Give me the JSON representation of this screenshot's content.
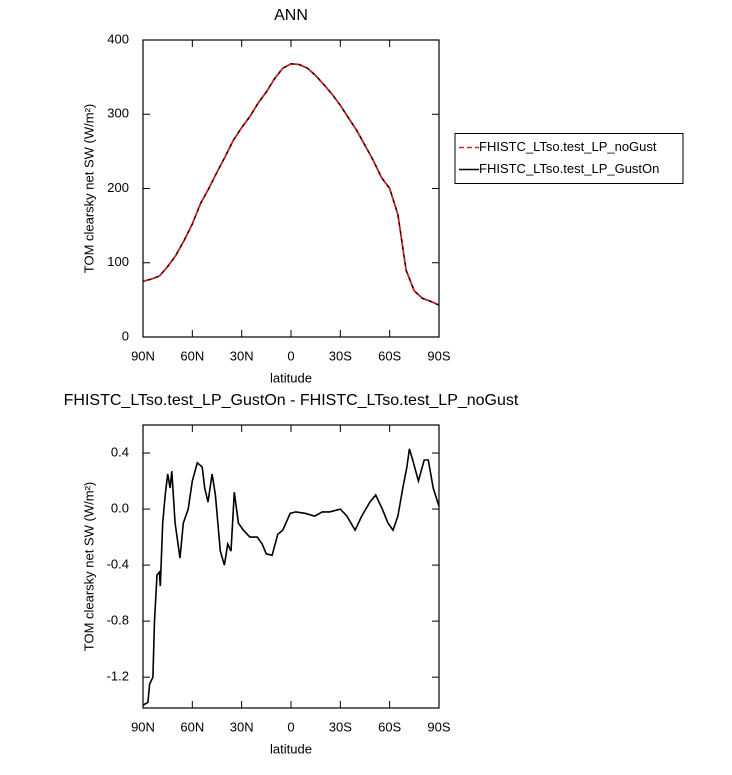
{
  "chart_data": [
    {
      "type": "line",
      "title": "ANN",
      "xlabel": "latitude",
      "ylabel": "TOM clearsky net SW (W/m²)",
      "x": [
        90,
        85,
        80,
        75,
        70,
        65,
        60,
        55,
        50,
        45,
        40,
        35,
        30,
        25,
        20,
        15,
        10,
        5,
        0,
        -5,
        -10,
        -15,
        -20,
        -25,
        -30,
        -35,
        -40,
        -45,
        -50,
        -55,
        -60,
        -65,
        -70,
        -75,
        -80,
        -85,
        -90
      ],
      "series": [
        {
          "name": "FHISTC_LTso.test_LP_noGust",
          "color": "#e41a1c",
          "linestyle": "dashed",
          "values": [
            75,
            78,
            82,
            95,
            110,
            130,
            152,
            180,
            200,
            222,
            243,
            265,
            282,
            297,
            315,
            330,
            348,
            362,
            368,
            367,
            362,
            352,
            340,
            327,
            312,
            295,
            278,
            258,
            238,
            215,
            200,
            165,
            90,
            62,
            52,
            48,
            43
          ]
        },
        {
          "name": "FHISTC_LTso.test_LP_GustOn",
          "color": "#000000",
          "linestyle": "solid",
          "values": [
            75,
            78,
            82,
            95,
            110,
            130,
            152,
            180,
            200,
            222,
            243,
            265,
            282,
            297,
            315,
            330,
            348,
            362,
            368,
            367,
            362,
            352,
            340,
            327,
            312,
            295,
            278,
            258,
            238,
            215,
            200,
            165,
            90,
            62,
            52,
            48,
            43
          ]
        }
      ],
      "xlim": [
        90,
        -90
      ],
      "xticks": [
        {
          "value": 90,
          "label": "90N"
        },
        {
          "value": 60,
          "label": "60N"
        },
        {
          "value": 30,
          "label": "30N"
        },
        0,
        {
          "value": -30,
          "label": "30S"
        },
        {
          "value": -60,
          "label": "60S"
        },
        {
          "value": -90,
          "label": "90S"
        }
      ],
      "ylim": [
        0,
        400
      ],
      "yticks": [
        0,
        100,
        200,
        300,
        400
      ],
      "legend": "right"
    },
    {
      "type": "line",
      "title": "FHISTC_LTso.test_LP_GustOn - FHISTC_LTso.test_LP_noGust",
      "xlabel": "latitude",
      "ylabel": "TOM clearsky net SW (W/m²)",
      "x": [
        90,
        87,
        86,
        84,
        83,
        81.5,
        80,
        79.5,
        78,
        76.5,
        75,
        73.5,
        72.5,
        70.5,
        67.5,
        65.5,
        62.5,
        60,
        57,
        54,
        52.5,
        50.5,
        48,
        46,
        43,
        40.5,
        38.5,
        36.5,
        34.5,
        32,
        29,
        25,
        20.5,
        17.5,
        15,
        11.5,
        8,
        5,
        0.5,
        -3,
        -8.5,
        -14.5,
        -19,
        -23.5,
        -30,
        -34,
        -39,
        -43,
        -48,
        -51.5,
        -55.5,
        -59,
        -62,
        -65,
        -68,
        -70.5,
        -72,
        -74,
        -77.5,
        -81,
        -83.5,
        -86.5,
        -90
      ],
      "values": [
        -1.4,
        -1.38,
        -1.25,
        -1.2,
        -0.8,
        -0.47,
        -0.45,
        -0.55,
        -0.1,
        0.1,
        0.25,
        0.15,
        0.27,
        -0.1,
        -0.35,
        -0.1,
        0.0,
        0.2,
        0.33,
        0.3,
        0.15,
        0.05,
        0.25,
        0.1,
        -0.3,
        -0.4,
        -0.25,
        -0.3,
        0.12,
        -0.1,
        -0.15,
        -0.2,
        -0.2,
        -0.25,
        -0.32,
        -0.33,
        -0.18,
        -0.15,
        -0.03,
        -0.02,
        -0.03,
        -0.05,
        -0.02,
        -0.02,
        0.0,
        -0.05,
        -0.15,
        -0.05,
        0.05,
        0.1,
        0.0,
        -0.1,
        -0.15,
        -0.05,
        0.15,
        0.3,
        0.43,
        0.35,
        0.2,
        0.35,
        0.35,
        0.15,
        0.02
      ],
      "color": "#000000",
      "xlim": [
        90,
        -90
      ],
      "xticks": [
        {
          "value": 90,
          "label": "90N"
        },
        {
          "value": 60,
          "label": "60N"
        },
        {
          "value": 30,
          "label": "30N"
        },
        0,
        {
          "value": -30,
          "label": "30S"
        },
        {
          "value": -60,
          "label": "60S"
        },
        {
          "value": -90,
          "label": "90S"
        }
      ],
      "ylim": [
        -1.42,
        0.6
      ],
      "yticks": [
        0.4,
        {
          "value": 0,
          "label": "0.0"
        },
        -0.4,
        -0.8,
        -1.2
      ]
    }
  ]
}
